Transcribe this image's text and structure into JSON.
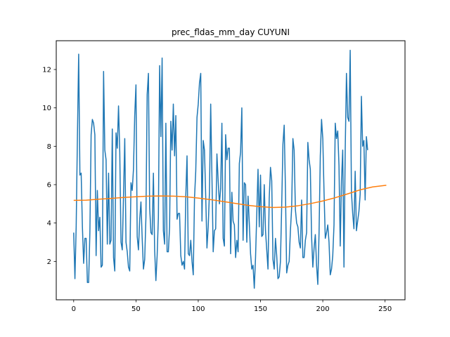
{
  "chart_data": {
    "type": "line",
    "title": "prec_fldas_mm_day CUYUNI",
    "xlabel": "",
    "ylabel": "",
    "xlim": [
      -14,
      266
    ],
    "ylim": [
      0.0,
      13.5
    ],
    "x_ticks": [
      0,
      50,
      100,
      150,
      200,
      250
    ],
    "y_ticks": [
      2,
      4,
      6,
      8,
      10,
      12
    ],
    "grid": false,
    "legend": "none",
    "series": [
      {
        "color": "#1f77b4",
        "x_start": 0,
        "x_step": 1,
        "values": [
          3.5,
          1.1,
          3.8,
          8.5,
          12.8,
          6.5,
          6.6,
          3.8,
          1.9,
          3.2,
          3.2,
          0.9,
          0.9,
          3.5,
          8.6,
          9.4,
          9.2,
          8.6,
          2.3,
          5.7,
          3.6,
          4.3,
          1.7,
          1.8,
          11.9,
          7.8,
          7.3,
          2.9,
          6.6,
          2.9,
          3.1,
          8.9,
          2.2,
          1.5,
          8.7,
          7.9,
          10.1,
          7.7,
          3.0,
          2.6,
          5.4,
          8.4,
          3.0,
          2.5,
          1.7,
          1.5,
          6.1,
          5.7,
          6.8,
          9.6,
          11.2,
          3.3,
          2.6,
          4.2,
          5.1,
          3.2,
          1.6,
          2.1,
          4.3,
          10.7,
          11.8,
          4.8,
          3.5,
          3.4,
          6.6,
          2.6,
          1.0,
          2.3,
          4.3,
          12.2,
          8.5,
          12.6,
          3.6,
          2.9,
          9.2,
          2.5,
          2.5,
          3.8,
          9.3,
          7.8,
          10.2,
          7.5,
          9.6,
          4.2,
          4.5,
          4.5,
          2.3,
          1.8,
          2.0,
          1.6,
          5.4,
          7.5,
          2.4,
          2.3,
          3.1,
          2.0,
          1.3,
          5.3,
          6.7,
          9.5,
          10.2,
          11.3,
          11.8,
          4.1,
          8.3,
          7.8,
          5.4,
          2.7,
          3.8,
          5.6,
          10.2,
          6.4,
          2.5,
          3.6,
          3.7,
          7.6,
          6.2,
          5.0,
          5.8,
          9.2,
          3.2,
          2.8,
          8.6,
          7.3,
          7.9,
          7.9,
          2.4,
          5.6,
          4.1,
          3.9,
          2.2,
          3.1,
          2.5,
          7.1,
          7.7,
          10.0,
          3.1,
          6.1,
          6.0,
          3.0,
          5.4,
          4.0,
          2.4,
          1.6,
          1.8,
          0.6,
          2.2,
          4.5,
          6.8,
          3.8,
          6.5,
          3.3,
          3.4,
          6.0,
          3.6,
          2.6,
          1.6,
          5.3,
          6.9,
          6.2,
          2.1,
          1.6,
          3.2,
          2.3,
          1.1,
          1.2,
          2.0,
          4.9,
          8.1,
          9.1,
          5.8,
          1.4,
          1.8,
          2.0,
          3.6,
          4.8,
          8.4,
          7.8,
          4.7,
          4.0,
          3.8,
          3.0,
          2.7,
          5.2,
          2.2,
          2.2,
          3.1,
          3.5,
          8.2,
          7.3,
          6.8,
          3.3,
          1.7,
          2.7,
          3.4,
          1.8,
          0.8,
          3.5,
          7.5,
          9.4,
          8.4,
          5.6,
          3.2,
          3.5,
          3.9,
          3.0,
          1.3,
          1.6,
          2.3,
          3.9,
          9.2,
          8.4,
          8.8,
          7.0,
          2.8,
          6.2,
          7.8,
          1.7,
          7.8,
          11.8,
          9.5,
          9.3,
          13.0,
          5.6,
          4.5,
          3.7,
          6.7,
          3.6,
          4.1,
          4.6,
          5.5,
          10.6,
          8.0,
          8.3,
          5.2,
          8.5,
          7.8
        ]
      },
      {
        "color": "#ff7f0e",
        "x": [
          0,
          10,
          20,
          30,
          40,
          50,
          60,
          70,
          80,
          90,
          100,
          110,
          120,
          130,
          140,
          150,
          160,
          170,
          180,
          190,
          200,
          210,
          220,
          230,
          240,
          251
        ],
        "values": [
          5.18,
          5.19,
          5.24,
          5.28,
          5.33,
          5.37,
          5.4,
          5.41,
          5.4,
          5.37,
          5.3,
          5.22,
          5.12,
          5.02,
          4.92,
          4.85,
          4.81,
          4.83,
          4.9,
          5.01,
          5.15,
          5.32,
          5.52,
          5.73,
          5.88,
          5.97
        ]
      }
    ]
  }
}
